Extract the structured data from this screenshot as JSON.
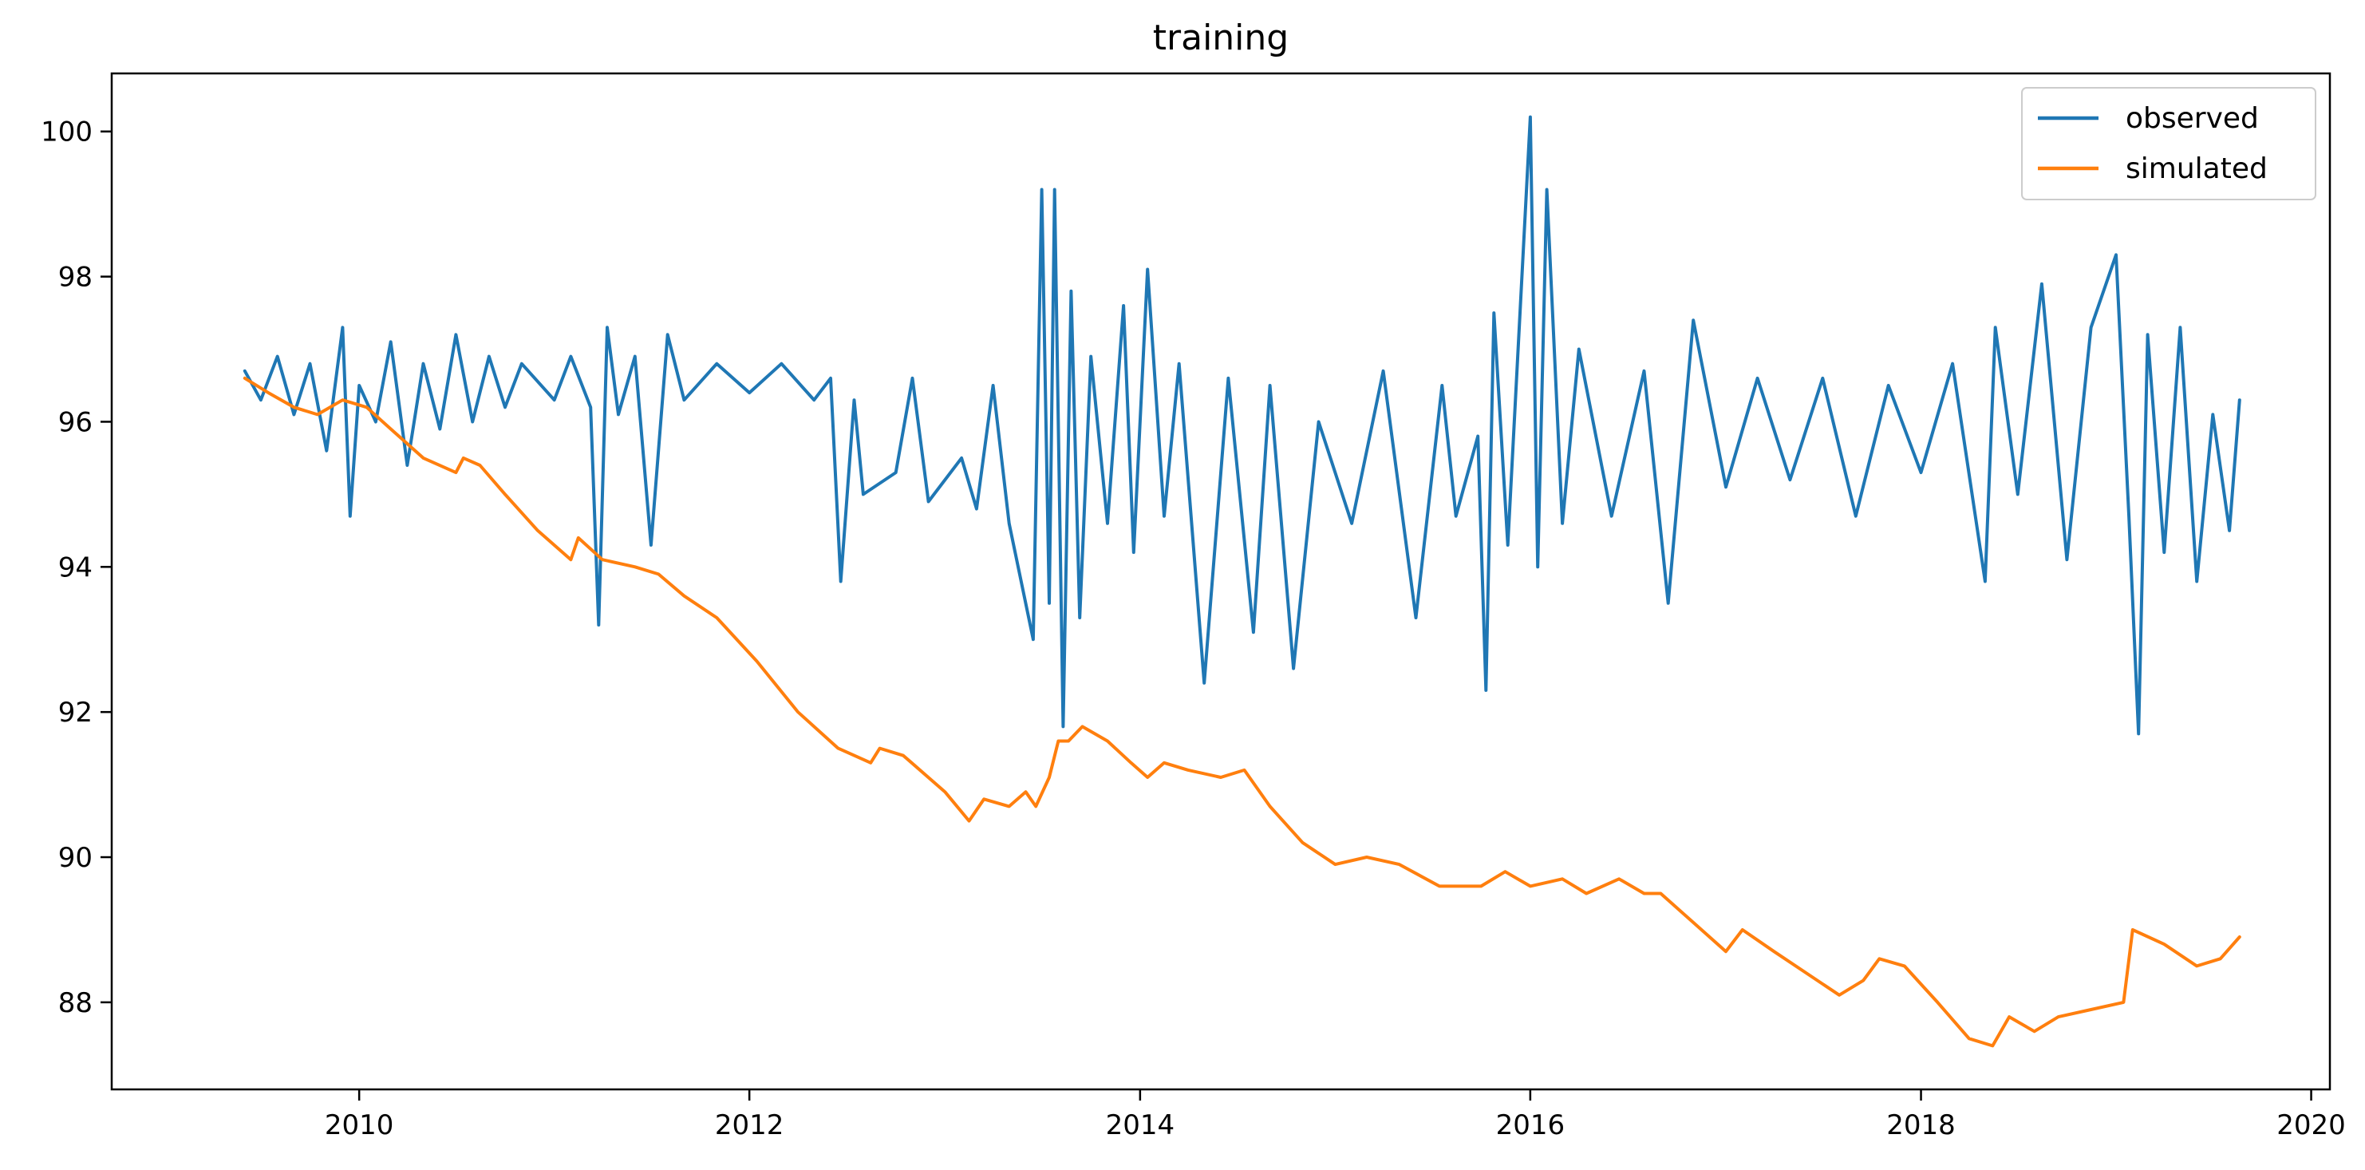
{
  "chart_data": {
    "type": "line",
    "title": "training",
    "xlabel": "",
    "ylabel": "",
    "x_axis": "date",
    "xlim": [
      "2008-09-25",
      "2020-02-05"
    ],
    "ylim": [
      86.8,
      100.8
    ],
    "xticks": [
      "2010",
      "2012",
      "2014",
      "2016",
      "2018",
      "2020"
    ],
    "yticks": [
      "88",
      "90",
      "92",
      "94",
      "96",
      "98",
      "100"
    ],
    "grid": false,
    "legend_position": "upper right",
    "series": [
      {
        "name": "observed",
        "color": "#1f77b4",
        "style": "noisy daily series, approximate envelope points (date, value)",
        "points": [
          [
            "2009-06-01",
            96.7
          ],
          [
            "2009-07-01",
            96.3
          ],
          [
            "2009-08-01",
            96.9
          ],
          [
            "2009-09-01",
            96.1
          ],
          [
            "2009-10-01",
            96.8
          ],
          [
            "2009-11-01",
            95.6
          ],
          [
            "2009-12-01",
            97.3
          ],
          [
            "2009-12-15",
            94.7
          ],
          [
            "2010-01-01",
            96.5
          ],
          [
            "2010-02-01",
            96.0
          ],
          [
            "2010-03-01",
            97.1
          ],
          [
            "2010-04-01",
            95.4
          ],
          [
            "2010-05-01",
            96.8
          ],
          [
            "2010-06-01",
            95.9
          ],
          [
            "2010-07-01",
            97.2
          ],
          [
            "2010-08-01",
            96.0
          ],
          [
            "2010-09-01",
            96.9
          ],
          [
            "2010-10-01",
            96.2
          ],
          [
            "2010-11-01",
            96.8
          ],
          [
            "2011-01-01",
            96.3
          ],
          [
            "2011-02-01",
            96.9
          ],
          [
            "2011-03-10",
            96.2
          ],
          [
            "2011-03-25",
            93.2
          ],
          [
            "2011-04-10",
            97.3
          ],
          [
            "2011-05-01",
            96.1
          ],
          [
            "2011-06-01",
            96.9
          ],
          [
            "2011-07-01",
            94.3
          ],
          [
            "2011-08-01",
            97.2
          ],
          [
            "2011-09-01",
            96.3
          ],
          [
            "2011-11-01",
            96.8
          ],
          [
            "2012-01-01",
            96.4
          ],
          [
            "2012-03-01",
            96.8
          ],
          [
            "2012-05-01",
            96.3
          ],
          [
            "2012-06-01",
            96.6
          ],
          [
            "2012-06-20",
            93.8
          ],
          [
            "2012-07-15",
            96.3
          ],
          [
            "2012-08-01",
            95.0
          ],
          [
            "2012-10-01",
            95.3
          ],
          [
            "2012-11-01",
            96.6
          ],
          [
            "2012-12-01",
            94.9
          ],
          [
            "2013-02-01",
            95.5
          ],
          [
            "2013-03-01",
            94.8
          ],
          [
            "2013-04-01",
            96.5
          ],
          [
            "2013-05-01",
            94.6
          ],
          [
            "2013-06-15",
            93.0
          ],
          [
            "2013-07-01",
            99.2
          ],
          [
            "2013-07-15",
            93.5
          ],
          [
            "2013-07-25",
            99.2
          ],
          [
            "2013-08-10",
            91.8
          ],
          [
            "2013-08-25",
            97.8
          ],
          [
            "2013-09-10",
            93.3
          ],
          [
            "2013-10-01",
            96.9
          ],
          [
            "2013-11-01",
            94.6
          ],
          [
            "2013-12-01",
            97.6
          ],
          [
            "2013-12-20",
            94.2
          ],
          [
            "2014-01-15",
            98.1
          ],
          [
            "2014-02-15",
            94.7
          ],
          [
            "2014-03-15",
            96.8
          ],
          [
            "2014-05-01",
            92.4
          ],
          [
            "2014-06-15",
            96.6
          ],
          [
            "2014-08-01",
            93.1
          ],
          [
            "2014-09-01",
            96.5
          ],
          [
            "2014-10-15",
            92.6
          ],
          [
            "2014-12-01",
            96.0
          ],
          [
            "2015-02-01",
            94.6
          ],
          [
            "2015-04-01",
            96.7
          ],
          [
            "2015-06-01",
            93.3
          ],
          [
            "2015-07-20",
            96.5
          ],
          [
            "2015-08-15",
            94.7
          ],
          [
            "2015-09-25",
            95.8
          ],
          [
            "2015-10-10",
            92.3
          ],
          [
            "2015-10-25",
            97.5
          ],
          [
            "2015-11-20",
            94.3
          ],
          [
            "2016-01-01",
            100.2
          ],
          [
            "2016-01-15",
            94.0
          ],
          [
            "2016-02-01",
            99.2
          ],
          [
            "2016-03-01",
            94.6
          ],
          [
            "2016-04-01",
            97.0
          ],
          [
            "2016-06-01",
            94.7
          ],
          [
            "2016-08-01",
            96.7
          ],
          [
            "2016-09-15",
            93.5
          ],
          [
            "2016-11-01",
            97.4
          ],
          [
            "2017-01-01",
            95.1
          ],
          [
            "2017-03-01",
            96.6
          ],
          [
            "2017-05-01",
            95.2
          ],
          [
            "2017-07-01",
            96.6
          ],
          [
            "2017-09-01",
            94.7
          ],
          [
            "2017-11-01",
            96.5
          ],
          [
            "2018-01-01",
            95.3
          ],
          [
            "2018-03-01",
            96.8
          ],
          [
            "2018-05-01",
            93.8
          ],
          [
            "2018-05-20",
            97.3
          ],
          [
            "2018-07-01",
            95.0
          ],
          [
            "2018-08-15",
            97.9
          ],
          [
            "2018-10-01",
            94.1
          ],
          [
            "2018-11-15",
            97.3
          ],
          [
            "2019-01-01",
            98.3
          ],
          [
            "2019-01-25",
            94.7
          ],
          [
            "2019-02-12",
            91.7
          ],
          [
            "2019-03-01",
            97.2
          ],
          [
            "2019-04-01",
            94.2
          ],
          [
            "2019-05-01",
            97.3
          ],
          [
            "2019-06-01",
            93.8
          ],
          [
            "2019-07-01",
            96.1
          ],
          [
            "2019-08-01",
            94.5
          ],
          [
            "2019-08-20",
            96.3
          ]
        ]
      },
      {
        "name": "simulated",
        "color": "#ff7f0e",
        "points": [
          [
            "2009-06-01",
            96.6
          ],
          [
            "2009-07-15",
            96.4
          ],
          [
            "2009-09-01",
            96.2
          ],
          [
            "2009-10-15",
            96.1
          ],
          [
            "2009-12-01",
            96.3
          ],
          [
            "2010-01-15",
            96.2
          ],
          [
            "2010-03-01",
            95.9
          ],
          [
            "2010-05-01",
            95.5
          ],
          [
            "2010-07-01",
            95.3
          ],
          [
            "2010-07-15",
            95.5
          ],
          [
            "2010-08-15",
            95.4
          ],
          [
            "2010-10-01",
            95.0
          ],
          [
            "2010-12-01",
            94.5
          ],
          [
            "2011-02-01",
            94.1
          ],
          [
            "2011-02-15",
            94.4
          ],
          [
            "2011-04-01",
            94.1
          ],
          [
            "2011-06-01",
            94.0
          ],
          [
            "2011-07-15",
            93.9
          ],
          [
            "2011-09-01",
            93.6
          ],
          [
            "2011-11-01",
            93.3
          ],
          [
            "2012-01-15",
            92.7
          ],
          [
            "2012-04-01",
            92.0
          ],
          [
            "2012-06-15",
            91.5
          ],
          [
            "2012-08-15",
            91.3
          ],
          [
            "2012-09-01",
            91.5
          ],
          [
            "2012-10-15",
            91.4
          ],
          [
            "2013-01-01",
            90.9
          ],
          [
            "2013-02-15",
            90.5
          ],
          [
            "2013-03-15",
            90.8
          ],
          [
            "2013-05-01",
            90.7
          ],
          [
            "2013-06-01",
            90.9
          ],
          [
            "2013-06-20",
            90.7
          ],
          [
            "2013-07-15",
            91.1
          ],
          [
            "2013-08-01",
            91.6
          ],
          [
            "2013-08-20",
            91.6
          ],
          [
            "2013-09-15",
            91.8
          ],
          [
            "2013-11-01",
            91.6
          ],
          [
            "2013-12-15",
            91.3
          ],
          [
            "2014-01-15",
            91.1
          ],
          [
            "2014-02-15",
            91.3
          ],
          [
            "2014-04-01",
            91.2
          ],
          [
            "2014-06-01",
            91.1
          ],
          [
            "2014-07-15",
            91.2
          ],
          [
            "2014-09-01",
            90.7
          ],
          [
            "2014-11-01",
            90.2
          ],
          [
            "2015-01-01",
            89.9
          ],
          [
            "2015-03-01",
            90.0
          ],
          [
            "2015-05-01",
            89.9
          ],
          [
            "2015-07-15",
            89.6
          ],
          [
            "2015-10-01",
            89.6
          ],
          [
            "2015-11-15",
            89.8
          ],
          [
            "2016-01-01",
            89.6
          ],
          [
            "2016-03-01",
            89.7
          ],
          [
            "2016-04-15",
            89.5
          ],
          [
            "2016-06-15",
            89.7
          ],
          [
            "2016-08-01",
            89.5
          ],
          [
            "2016-09-01",
            89.5
          ],
          [
            "2016-11-01",
            89.1
          ],
          [
            "2017-01-01",
            88.7
          ],
          [
            "2017-02-01",
            89.0
          ],
          [
            "2017-04-01",
            88.7
          ],
          [
            "2017-06-01",
            88.4
          ],
          [
            "2017-08-01",
            88.1
          ],
          [
            "2017-09-15",
            88.3
          ],
          [
            "2017-10-15",
            88.6
          ],
          [
            "2017-12-01",
            88.5
          ],
          [
            "2018-02-01",
            88.0
          ],
          [
            "2018-04-01",
            87.5
          ],
          [
            "2018-05-15",
            87.4
          ],
          [
            "2018-06-15",
            87.8
          ],
          [
            "2018-08-01",
            87.6
          ],
          [
            "2018-09-15",
            87.8
          ],
          [
            "2018-11-15",
            87.9
          ],
          [
            "2019-01-15",
            88.0
          ],
          [
            "2019-02-01",
            89.0
          ],
          [
            "2019-04-01",
            88.8
          ],
          [
            "2019-06-01",
            88.5
          ],
          [
            "2019-07-15",
            88.6
          ],
          [
            "2019-08-20",
            88.9
          ]
        ]
      }
    ]
  }
}
